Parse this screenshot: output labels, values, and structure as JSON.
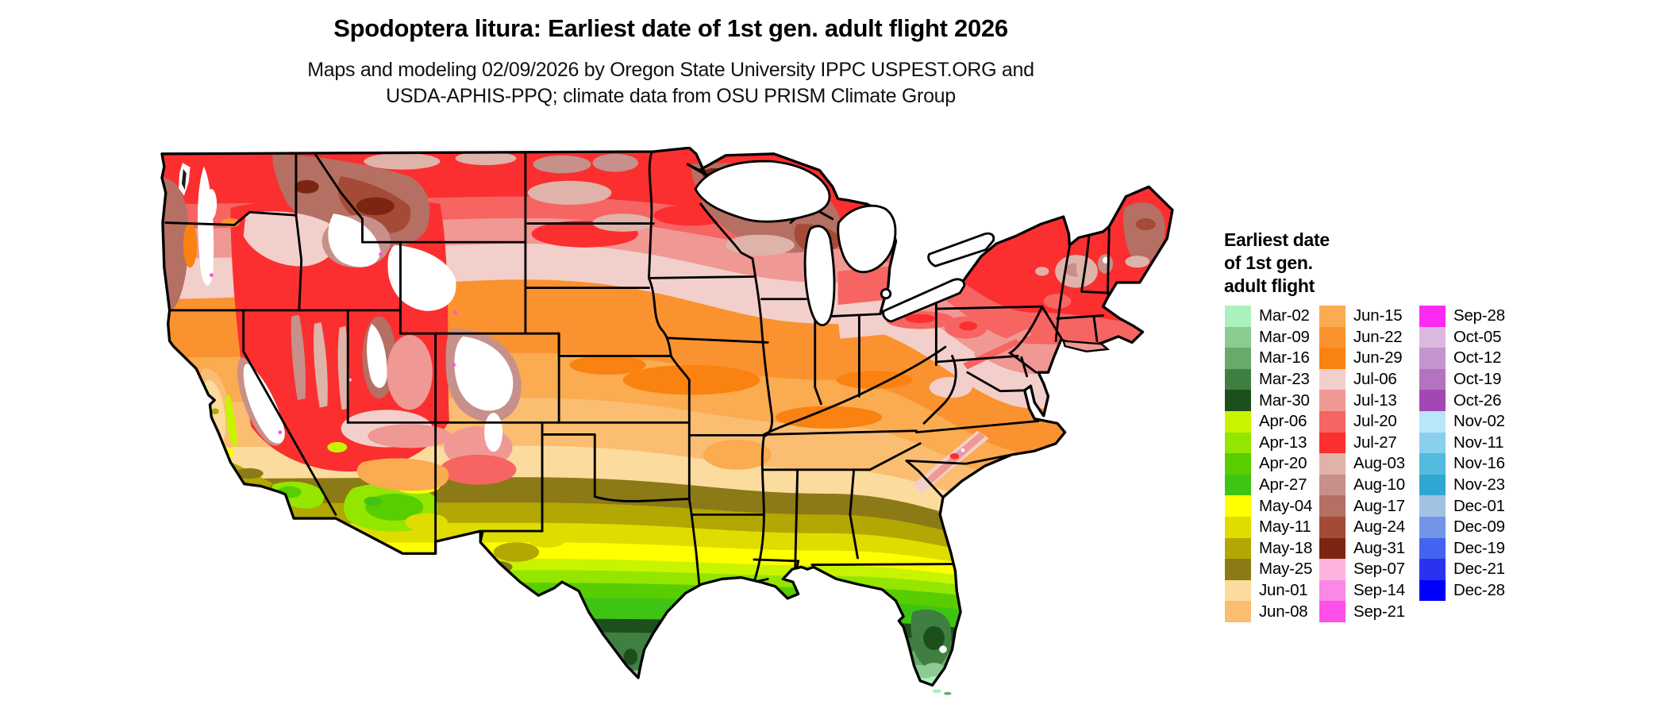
{
  "header": {
    "title": "Spodoptera litura: Earliest date of 1st gen. adult flight 2026",
    "subtitle_line1": "Maps and modeling 02/09/2026 by Oregon State University IPPC USPEST.ORG and",
    "subtitle_line2": "USDA-APHIS-PPQ; climate data from OSU PRISM Climate Group"
  },
  "legend": {
    "title_line1": "Earliest date",
    "title_line2": "of 1st gen.",
    "title_line3": "adult flight",
    "columns": [
      [
        {
          "label": "Mar-02",
          "color": "#aaf2bb"
        },
        {
          "label": "Mar-09",
          "color": "#8ccb92"
        },
        {
          "label": "Mar-16",
          "color": "#68aa6a"
        },
        {
          "label": "Mar-23",
          "color": "#3f7f42"
        },
        {
          "label": "Mar-30",
          "color": "#1d4f1d"
        },
        {
          "label": "Apr-06",
          "color": "#c8f400"
        },
        {
          "label": "Apr-13",
          "color": "#94e600"
        },
        {
          "label": "Apr-20",
          "color": "#58cd00"
        },
        {
          "label": "Apr-27",
          "color": "#3ec413"
        },
        {
          "label": "May-04",
          "color": "#ffff00"
        },
        {
          "label": "May-11",
          "color": "#dfdd00"
        },
        {
          "label": "May-18",
          "color": "#b3a703"
        },
        {
          "label": "May-25",
          "color": "#8c7a16"
        },
        {
          "label": "Jun-01",
          "color": "#fcdb9e"
        },
        {
          "label": "Jun-08",
          "color": "#fbbd72"
        }
      ],
      [
        {
          "label": "Jun-15",
          "color": "#fbab50"
        },
        {
          "label": "Jun-22",
          "color": "#fb9230"
        },
        {
          "label": "Jun-29",
          "color": "#fa8211"
        },
        {
          "label": "Jul-06",
          "color": "#f3cfcb"
        },
        {
          "label": "Jul-13",
          "color": "#f09894"
        },
        {
          "label": "Jul-20",
          "color": "#f66562"
        },
        {
          "label": "Jul-27",
          "color": "#fb2f2f"
        },
        {
          "label": "Aug-03",
          "color": "#dfb3aa"
        },
        {
          "label": "Aug-10",
          "color": "#c7908a"
        },
        {
          "label": "Aug-17",
          "color": "#b56f63"
        },
        {
          "label": "Aug-24",
          "color": "#a34b37"
        },
        {
          "label": "Aug-31",
          "color": "#7c2611"
        },
        {
          "label": "Sep-07",
          "color": "#fcb4dc"
        },
        {
          "label": "Sep-14",
          "color": "#fb87e6"
        },
        {
          "label": "Sep-21",
          "color": "#fd50e8"
        }
      ],
      [
        {
          "label": "Sep-28",
          "color": "#fd2bf2"
        },
        {
          "label": "Oct-05",
          "color": "#dcb8e0"
        },
        {
          "label": "Oct-12",
          "color": "#c495cf"
        },
        {
          "label": "Oct-19",
          "color": "#b473c0"
        },
        {
          "label": "Oct-26",
          "color": "#a348b3"
        },
        {
          "label": "Nov-02",
          "color": "#b8e6fa"
        },
        {
          "label": "Nov-11",
          "color": "#88d0ed"
        },
        {
          "label": "Nov-16",
          "color": "#54bade"
        },
        {
          "label": "Nov-23",
          "color": "#2fa7d2"
        },
        {
          "label": "Dec-01",
          "color": "#a2c2e2"
        },
        {
          "label": "Dec-09",
          "color": "#7295e8"
        },
        {
          "label": "Dec-19",
          "color": "#4463ee"
        },
        {
          "label": "Dec-21",
          "color": "#2a32f0"
        },
        {
          "label": "Dec-28",
          "color": "#0000fb"
        }
      ]
    ]
  }
}
